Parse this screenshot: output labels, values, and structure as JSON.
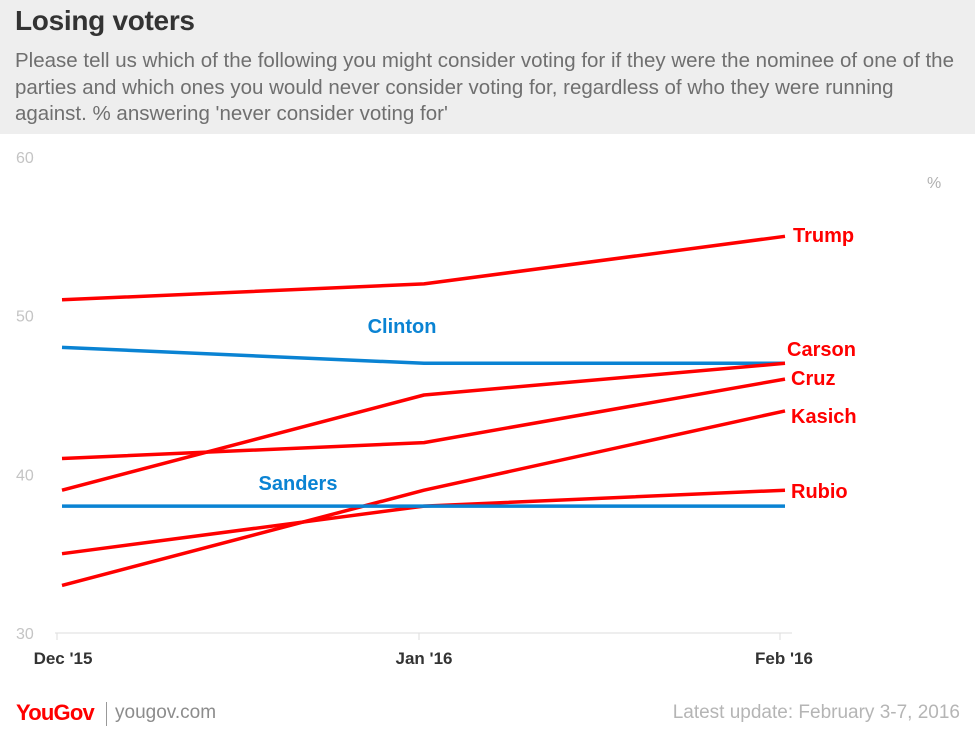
{
  "header": {
    "title": "Losing voters",
    "subtitle": "Please tell us which of the following you might consider voting for if they were the nominee of one of the parties and which ones you would never consider voting for, regardless of who they were running against. % answering 'never consider voting for'"
  },
  "chart_data": {
    "type": "line",
    "x": [
      "Dec '15",
      "Jan '16",
      "Feb '16"
    ],
    "ylim": [
      30,
      60
    ],
    "yticks": [
      "60",
      "50",
      "40",
      "30"
    ],
    "unit_label": "%",
    "grid": false,
    "series": [
      {
        "name": "Trump",
        "values": [
          51,
          52,
          55
        ],
        "color": "#ff0000"
      },
      {
        "name": "Clinton",
        "values": [
          48,
          47,
          47
        ],
        "color": "#0a83d3"
      },
      {
        "name": "Carson",
        "values": [
          39,
          45,
          47
        ],
        "color": "#ff0000"
      },
      {
        "name": "Cruz",
        "values": [
          41,
          42,
          46
        ],
        "color": "#ff0000"
      },
      {
        "name": "Kasich",
        "values": [
          33,
          39,
          44
        ],
        "color": "#ff0000"
      },
      {
        "name": "Rubio",
        "values": [
          35,
          38,
          39
        ],
        "color": "#ff0000"
      },
      {
        "name": "Sanders",
        "values": [
          38,
          38,
          38
        ],
        "color": "#0a83d3"
      }
    ]
  },
  "footer": {
    "logo": "YouGov",
    "site": "yougov.com",
    "update": "Latest update: February 3-7, 2016"
  }
}
